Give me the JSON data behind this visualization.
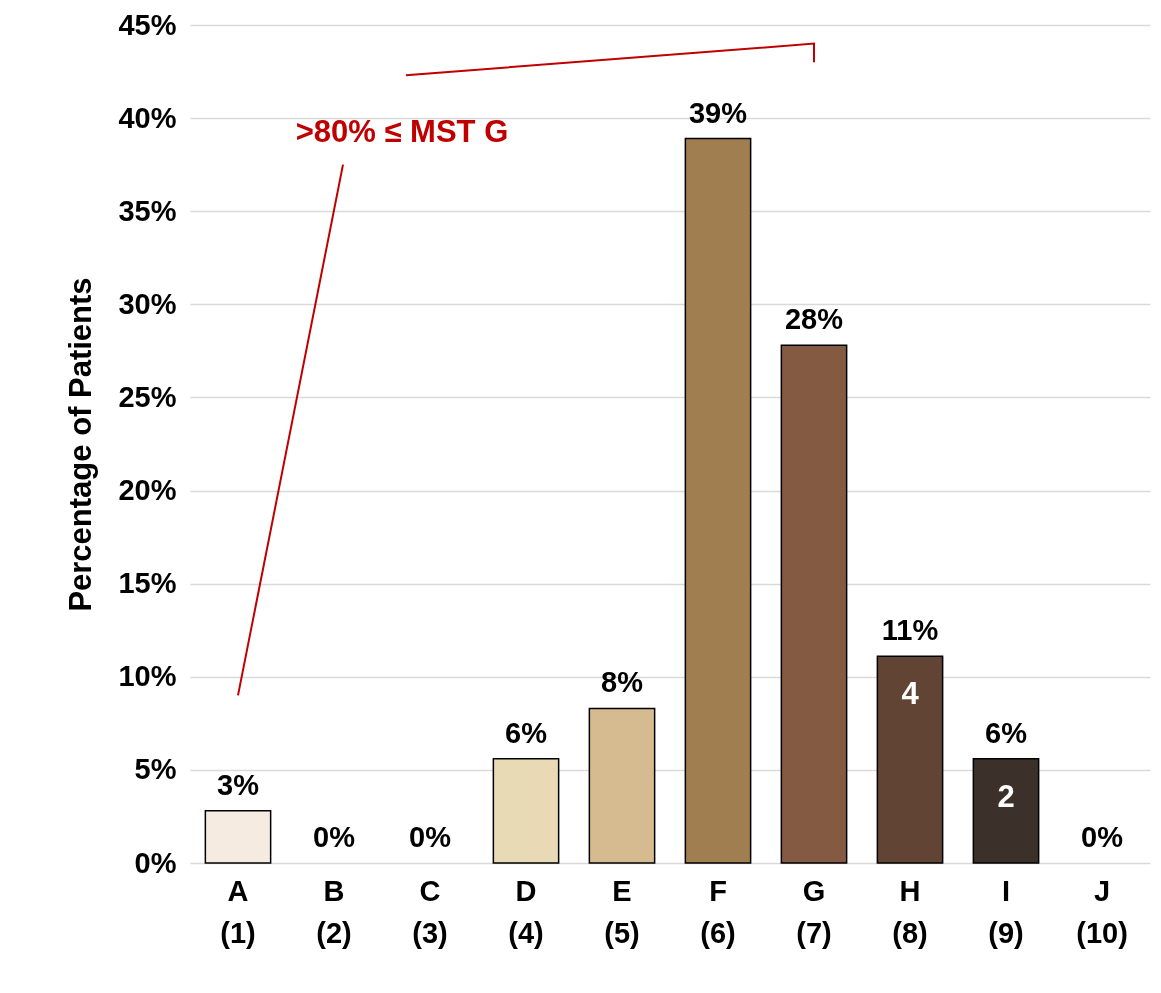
{
  "chart_data": {
    "type": "bar",
    "ylabel": "Percentage of Patients",
    "categories": [
      "A\n(1)",
      "B\n(2)",
      "C\n(3)",
      "D\n(4)",
      "E\n(5)",
      "F\n(6)",
      "G\n(7)",
      "H\n(8)",
      "I\n(9)",
      "J\n(10)"
    ],
    "values": [
      2.8,
      0,
      0,
      5.6,
      8.3,
      38.9,
      27.8,
      11.1,
      5.6,
      0
    ],
    "colors": [
      "#f5ebe0",
      "#f5ebe0",
      "#f5ebe0",
      "#e8dab5",
      "#d7bb90",
      "#a07e50",
      "#845b42",
      "#624435",
      "#3b312a",
      "#3b312a"
    ],
    "value_labels": [
      "3%",
      "0%",
      "0%",
      "6%",
      "8%",
      "39%",
      "28%",
      "11%",
      "6%",
      "0%"
    ],
    "annotations": [
      ">80% ≤ MST G",
      "4",
      "2"
    ],
    "ylim": [
      0,
      45
    ],
    "yticks": [
      {
        "value": 0,
        "label": "0%"
      },
      {
        "value": 5,
        "label": "5%"
      },
      {
        "value": 10,
        "label": "10%"
      },
      {
        "value": 15,
        "label": "15%"
      },
      {
        "value": 20,
        "label": "20%"
      },
      {
        "value": 25,
        "label": "25%"
      },
      {
        "value": 30,
        "label": "30%"
      },
      {
        "value": 35,
        "label": "35%"
      },
      {
        "value": 40,
        "label": "40%"
      },
      {
        "value": 45,
        "label": "45%"
      }
    ],
    "grid": "y"
  }
}
